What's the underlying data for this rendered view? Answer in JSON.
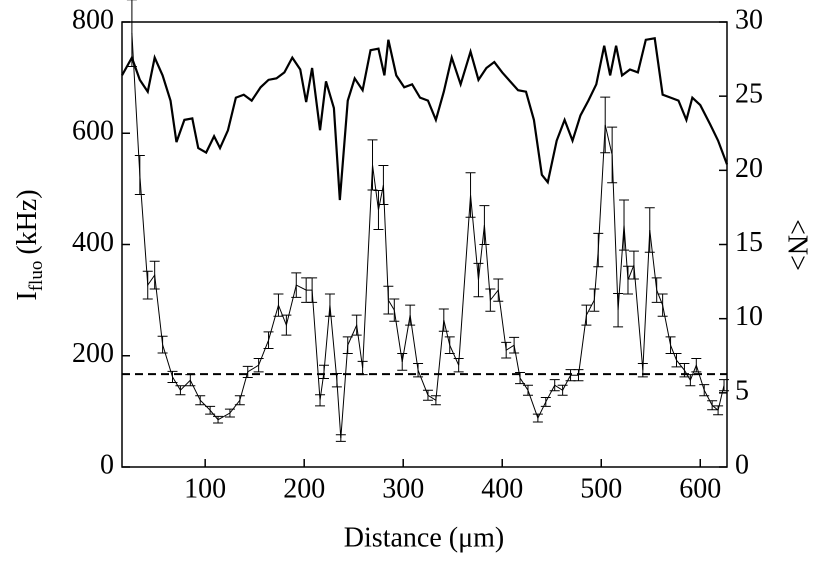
{
  "chart_data": {
    "type": "line",
    "xlabel": "Distance (μm)",
    "ylabel": {
      "main": "I",
      "sub": "fluo",
      "unit": "(kHz)"
    },
    "y2label": "<N>",
    "xlim": [
      16,
      627
    ],
    "xticks": [
      100,
      200,
      300,
      400,
      500,
      600
    ],
    "ylim": [
      0,
      800
    ],
    "yticks": [
      0,
      200,
      400,
      600,
      800
    ],
    "y2lim": [
      0,
      30
    ],
    "y2ticks": [
      0,
      5,
      10,
      15,
      20,
      25,
      30
    ],
    "reference_line": {
      "value": 167,
      "style": "dashed",
      "color": "#000000"
    },
    "series": [
      {
        "color": "#000000",
        "axis": "y",
        "error_bars": true,
        "x": [
          26,
          34,
          42,
          49,
          57,
          67,
          75,
          85,
          95,
          105,
          113,
          125,
          135,
          143,
          154,
          164,
          174,
          182,
          192,
          202,
          208,
          216,
          220,
          226,
          233,
          237,
          244,
          253,
          259,
          269,
          275,
          280,
          285,
          291,
          299,
          307,
          315,
          325,
          333,
          341,
          347,
          356,
          368,
          376,
          382,
          388,
          396,
          404,
          412,
          418,
          426,
          436,
          444,
          453,
          461,
          469,
          477,
          485,
          493,
          497,
          504,
          511,
          517,
          523,
          527,
          533,
          542,
          549,
          556,
          562,
          570,
          576,
          584,
          590,
          596,
          604,
          612,
          618,
          624
        ],
        "values": [
          780,
          525,
          327,
          345,
          220,
          162,
          138,
          156,
          120,
          102,
          85,
          97,
          120,
          171,
          183,
          228,
          291,
          255,
          327,
          318,
          318,
          120,
          171,
          291,
          156,
          52,
          219,
          255,
          178,
          543,
          462,
          507,
          300,
          282,
          189,
          273,
          174,
          129,
          120,
          264,
          219,
          183,
          489,
          336,
          435,
          300,
          318,
          210,
          219,
          160,
          138,
          88,
          117,
          147,
          138,
          165,
          165,
          273,
          300,
          390,
          615,
          561,
          282,
          435,
          336,
          363,
          174,
          426,
          318,
          291,
          219,
          192,
          174,
          156,
          183,
          138,
          111,
          102,
          147
        ],
        "errors": [
          60,
          35,
          25,
          25,
          15,
          10,
          8,
          10,
          8,
          7,
          6,
          7,
          8,
          10,
          12,
          15,
          20,
          18,
          22,
          22,
          22,
          10,
          12,
          20,
          12,
          6,
          15,
          18,
          12,
          45,
          35,
          35,
          25,
          20,
          15,
          18,
          12,
          9,
          8,
          20,
          15,
          12,
          40,
          30,
          35,
          20,
          20,
          14,
          14,
          10,
          9,
          7,
          8,
          10,
          9,
          10,
          10,
          18,
          20,
          30,
          50,
          50,
          30,
          45,
          25,
          25,
          12,
          40,
          22,
          20,
          15,
          12,
          12,
          10,
          12,
          10,
          8,
          8,
          10
        ]
      },
      {
        "color": "#000000",
        "axis": "y2",
        "x": [
          16,
          26,
          34,
          42,
          49,
          57,
          65,
          71,
          79,
          87,
          93,
          101,
          109,
          115,
          123,
          131,
          139,
          147,
          156,
          164,
          172,
          180,
          188,
          196,
          202,
          208,
          216,
          222,
          230,
          236,
          244,
          251,
          259,
          267,
          275,
          281,
          285,
          293,
          301,
          309,
          317,
          325,
          333,
          341,
          349,
          358,
          368,
          376,
          384,
          392,
          400,
          408,
          416,
          424,
          432,
          440,
          446,
          455,
          463,
          471,
          479,
          487,
          495,
          503,
          509,
          515,
          521,
          529,
          537,
          545,
          554,
          562,
          570,
          578,
          586,
          592,
          600,
          610,
          618,
          627
        ],
        "values": [
          26.4,
          27.6,
          26.1,
          25.3,
          27.6,
          26.4,
          24.7,
          21.9,
          23.4,
          23.5,
          21.5,
          21.2,
          22.3,
          21.5,
          22.7,
          24.9,
          25.1,
          24.7,
          25.6,
          26.1,
          26.2,
          26.6,
          27.6,
          26.8,
          24.6,
          26.9,
          22.7,
          26.0,
          24.2,
          18.0,
          24.7,
          26.2,
          25.4,
          28.1,
          28.2,
          26.4,
          28.8,
          26.4,
          25.6,
          25.8,
          24.9,
          24.7,
          23.4,
          25.3,
          27.6,
          25.8,
          28.0,
          26.1,
          26.9,
          27.3,
          26.6,
          26.0,
          25.4,
          25.3,
          23.4,
          19.7,
          19.2,
          22.0,
          23.4,
          22.0,
          23.7,
          24.7,
          25.8,
          28.4,
          26.4,
          28.4,
          26.4,
          26.8,
          26.6,
          28.8,
          28.9,
          25.1,
          24.9,
          24.7,
          23.4,
          24.9,
          24.4,
          23.1,
          22.0,
          20.4
        ]
      }
    ]
  }
}
